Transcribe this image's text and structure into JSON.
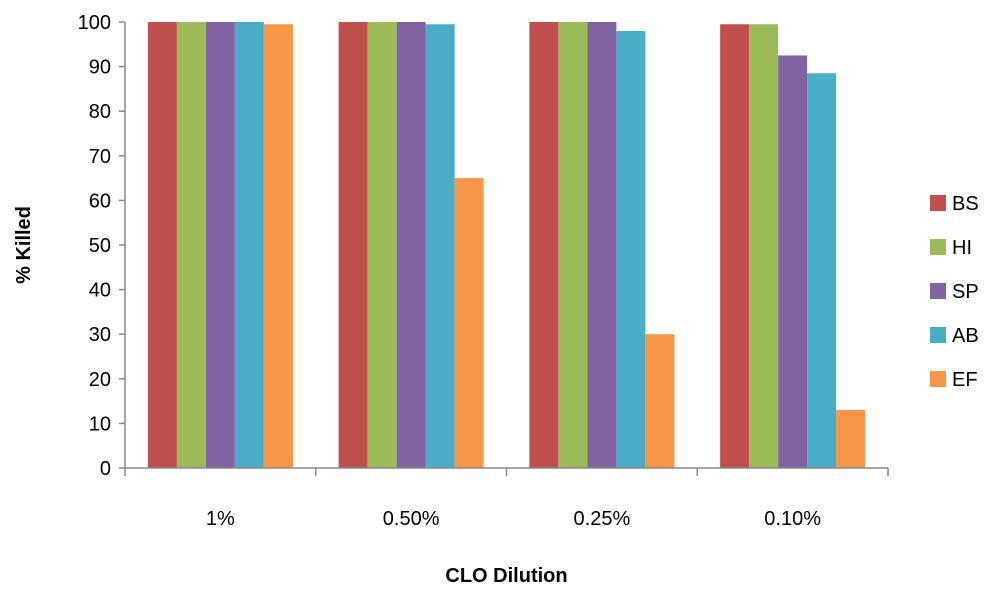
{
  "chart_data": {
    "type": "bar",
    "title": "",
    "xlabel": "CLO Dilution",
    "ylabel": "% Killed",
    "categories": [
      "1%",
      "0.50%",
      "0.25%",
      "0.10%"
    ],
    "ylim": [
      0,
      100
    ],
    "yticks": [
      0,
      10,
      20,
      30,
      40,
      50,
      60,
      70,
      80,
      90,
      100
    ],
    "grid": false,
    "legend_position": "right",
    "series": [
      {
        "name": "BS",
        "color": "#C0504D",
        "values": [
          100,
          100,
          100,
          99.5
        ]
      },
      {
        "name": "HI",
        "color": "#9BBB59",
        "values": [
          100,
          100,
          100,
          99.5
        ]
      },
      {
        "name": "SP",
        "color": "#8064A2",
        "values": [
          100,
          100,
          100,
          92.5
        ]
      },
      {
        "name": "AB",
        "color": "#4BACC6",
        "values": [
          100,
          99.5,
          98,
          88.5
        ]
      },
      {
        "name": "EF",
        "color": "#F79646",
        "values": [
          99.5,
          65,
          30,
          13
        ]
      }
    ]
  }
}
